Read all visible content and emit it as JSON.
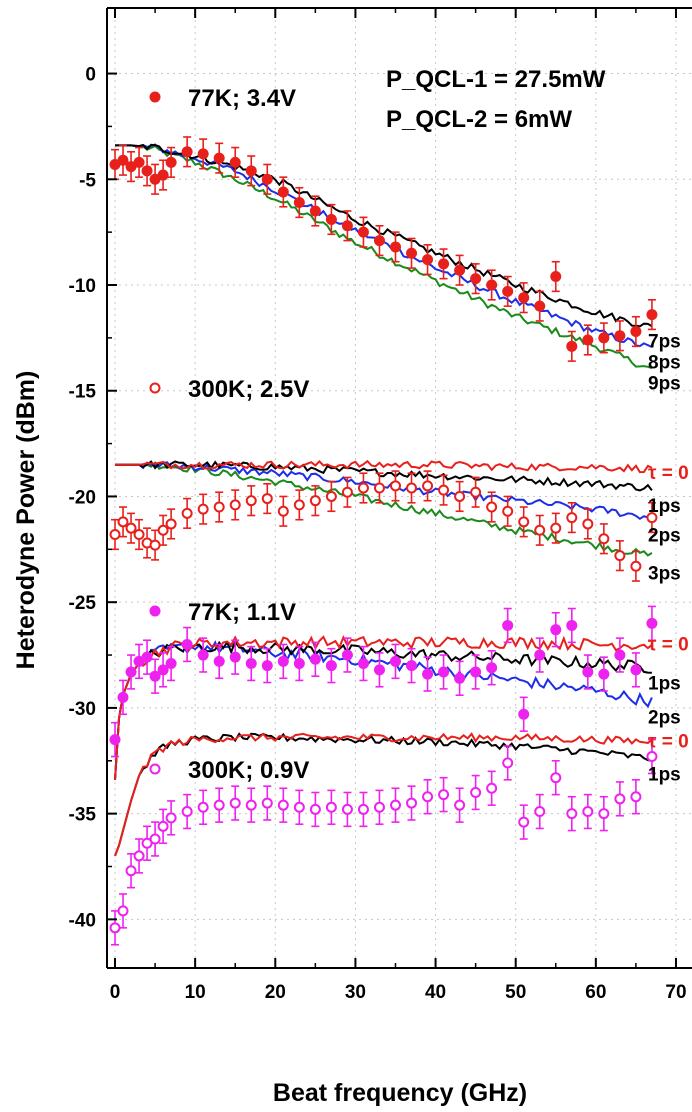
{
  "chart_data": {
    "type": "line",
    "xlabel": "Beat frequency  (GHz)",
    "ylabel": "Heterodyne Power  (dBm)",
    "xlim": [
      -1,
      72
    ],
    "ylim": [
      -42.3,
      3.1
    ],
    "xticks": [
      0,
      10,
      20,
      30,
      40,
      50,
      60,
      70
    ],
    "xtick_labels": [
      "0",
      "10",
      "20",
      "30",
      "40",
      "50",
      "60",
      "70"
    ],
    "yticks": [
      0,
      -5,
      -10,
      -15,
      -20,
      -25,
      -30,
      -35,
      -40
    ],
    "ytick_labels": [
      "0",
      "-5",
      "-10",
      "-15",
      "-20",
      "-25",
      "-30",
      "-35",
      "-40"
    ],
    "grid": true,
    "annotations": [
      "P_QCL-1 = 27.5mW",
      "P_QCL-2 = 6mW"
    ],
    "colors": {
      "red": "#e8201c",
      "magenta": "#ee22ee",
      "black": "#000000",
      "blue": "#1c2ee8",
      "green": "#1a8a1a"
    },
    "measured": [
      {
        "name": "77K; 3.4V",
        "color": "#e8201c",
        "marker": "filled",
        "x": [
          0,
          1,
          2,
          3,
          4,
          5,
          6,
          7,
          9,
          11,
          13,
          15,
          17,
          19,
          21,
          23,
          25,
          27,
          29,
          31,
          33,
          35,
          37,
          39,
          41,
          43,
          45,
          47,
          49,
          51,
          53,
          55,
          57,
          59,
          61,
          63,
          65,
          67
        ],
        "y": [
          -4.3,
          -4.1,
          -4.4,
          -4.2,
          -4.6,
          -5.0,
          -4.8,
          -4.2,
          -3.7,
          -3.8,
          -4.0,
          -4.2,
          -4.6,
          -5.0,
          -5.6,
          -6.1,
          -6.5,
          -6.9,
          -7.2,
          -7.5,
          -7.9,
          -8.2,
          -8.5,
          -8.8,
          -9.0,
          -9.3,
          -9.7,
          -10.0,
          -10.3,
          -10.6,
          -11.0,
          -9.6,
          -12.9,
          -12.6,
          -12.5,
          -12.4,
          -12.2,
          -11.4
        ],
        "err": 0.7
      },
      {
        "name": "300K; 2.5V",
        "color": "#e8201c",
        "marker": "open",
        "x": [
          0,
          1,
          2,
          3,
          4,
          5,
          6,
          7,
          9,
          11,
          13,
          15,
          17,
          19,
          21,
          23,
          25,
          27,
          29,
          31,
          33,
          35,
          37,
          39,
          41,
          43,
          45,
          47,
          49,
          51,
          53,
          55,
          57,
          59,
          61,
          63,
          65,
          67
        ],
        "y": [
          -21.8,
          -21.2,
          -21.5,
          -21.8,
          -22.2,
          -22.3,
          -21.6,
          -21.3,
          -20.8,
          -20.6,
          -20.5,
          -20.4,
          -20.2,
          -20.1,
          -20.7,
          -20.4,
          -20.2,
          -20.0,
          -19.8,
          -19.6,
          -19.6,
          -19.5,
          -19.6,
          -19.5,
          -19.7,
          -20.0,
          -19.8,
          -20.5,
          -20.7,
          -21.2,
          -21.6,
          -21.5,
          -21.0,
          -21.3,
          -22.0,
          -22.8,
          -23.3,
          -21.0
        ],
        "err": 0.7
      },
      {
        "name": "77K; 1.1V",
        "color": "#ee22ee",
        "marker": "filled",
        "x": [
          0,
          1,
          2,
          3,
          4,
          5,
          6,
          7,
          9,
          11,
          13,
          15,
          17,
          19,
          21,
          23,
          25,
          27,
          29,
          31,
          33,
          35,
          37,
          39,
          41,
          43,
          45,
          47,
          49,
          51,
          53,
          55,
          57,
          59,
          61,
          63,
          65,
          67
        ],
        "y": [
          -31.5,
          -29.5,
          -28.3,
          -27.8,
          -27.6,
          -28.5,
          -28.2,
          -27.9,
          -27.0,
          -27.5,
          -27.8,
          -27.6,
          -27.9,
          -28.0,
          -27.8,
          -27.9,
          -27.7,
          -28.0,
          -27.5,
          -27.9,
          -28.2,
          -27.8,
          -28.0,
          -28.4,
          -28.3,
          -28.6,
          -28.3,
          -28.1,
          -26.1,
          -30.3,
          -27.5,
          -26.3,
          -26.1,
          -28.3,
          -28.4,
          -27.5,
          -28.2,
          -26.0
        ],
        "err": 0.8
      },
      {
        "name": "300K; 0.9V",
        "color": "#ee22ee",
        "marker": "open",
        "x": [
          0,
          1,
          2,
          3,
          4,
          5,
          6,
          7,
          9,
          11,
          13,
          15,
          17,
          19,
          21,
          23,
          25,
          27,
          29,
          31,
          33,
          35,
          37,
          39,
          41,
          43,
          45,
          47,
          49,
          51,
          53,
          55,
          57,
          59,
          61,
          63,
          65,
          67
        ],
        "y": [
          -40.4,
          -39.6,
          -37.7,
          -37.0,
          -36.4,
          -36.2,
          -35.6,
          -35.2,
          -34.9,
          -34.7,
          -34.6,
          -34.5,
          -34.6,
          -34.5,
          -34.6,
          -34.7,
          -34.8,
          -34.7,
          -34.8,
          -34.8,
          -34.7,
          -34.6,
          -34.5,
          -34.2,
          -34.1,
          -34.6,
          -34.0,
          -33.8,
          -32.6,
          -35.4,
          -34.9,
          -33.3,
          -35.0,
          -34.9,
          -35.0,
          -34.3,
          -34.2,
          -32.3
        ],
        "err": 0.8
      }
    ],
    "model": [
      {
        "group": 1,
        "tau": "7ps",
        "color": "#000000",
        "x": [
          0,
          2,
          5,
          10,
          15,
          20,
          30,
          40,
          50,
          60,
          67
        ],
        "y": [
          -3.4,
          -3.4,
          -3.5,
          -3.9,
          -4.4,
          -5.0,
          -6.9,
          -8.5,
          -10.0,
          -11.3,
          -12.0
        ]
      },
      {
        "group": 1,
        "tau": "8ps",
        "color": "#1c2ee8",
        "x": [
          0,
          2,
          5,
          10,
          15,
          20,
          30,
          40,
          50,
          60,
          67
        ],
        "y": [
          -3.4,
          -3.4,
          -3.5,
          -4.0,
          -4.6,
          -5.5,
          -7.4,
          -9.2,
          -10.8,
          -12.2,
          -13.0
        ]
      },
      {
        "group": 1,
        "tau": "9ps",
        "color": "#1a8a1a",
        "x": [
          0,
          2,
          5,
          10,
          15,
          20,
          30,
          40,
          50,
          60,
          67
        ],
        "y": [
          -3.4,
          -3.4,
          -3.6,
          -4.2,
          -5.0,
          -5.9,
          -8.0,
          -9.8,
          -11.5,
          -12.9,
          -14.0
        ]
      },
      {
        "group": 2,
        "tau": "τ = 0",
        "color": "#e8201c",
        "x": [
          0,
          5,
          10,
          20,
          30,
          40,
          50,
          60,
          67
        ],
        "y": [
          -18.5,
          -18.5,
          -18.5,
          -18.5,
          -18.5,
          -18.5,
          -18.6,
          -18.6,
          -18.7
        ]
      },
      {
        "group": 2,
        "tau": "1ps",
        "color": "#000000",
        "x": [
          0,
          5,
          10,
          20,
          30,
          40,
          50,
          60,
          67
        ],
        "y": [
          -18.5,
          -18.5,
          -18.5,
          -18.6,
          -18.8,
          -19.0,
          -19.2,
          -19.4,
          -19.6
        ]
      },
      {
        "group": 2,
        "tau": "2ps",
        "color": "#1c2ee8",
        "x": [
          0,
          5,
          10,
          20,
          30,
          40,
          50,
          60,
          67
        ],
        "y": [
          -18.5,
          -18.5,
          -18.6,
          -18.9,
          -19.3,
          -19.8,
          -20.2,
          -20.6,
          -21.0
        ]
      },
      {
        "group": 2,
        "tau": "3ps",
        "color": "#1a8a1a",
        "x": [
          0,
          5,
          10,
          20,
          30,
          40,
          50,
          60,
          67
        ],
        "y": [
          -18.5,
          -18.5,
          -18.7,
          -19.3,
          -20.0,
          -20.8,
          -21.6,
          -22.3,
          -22.8
        ]
      },
      {
        "group": 3,
        "tau": "τ = 0",
        "color": "#e8201c",
        "x": [
          0,
          0.5,
          1,
          2,
          3,
          5,
          7,
          10,
          15,
          20,
          30,
          40,
          50,
          60,
          67
        ],
        "y": [
          -33.4,
          -30.5,
          -29.4,
          -28.4,
          -27.9,
          -27.4,
          -27.1,
          -27.0,
          -26.9,
          -26.9,
          -26.9,
          -26.9,
          -26.9,
          -27.0,
          -27.0
        ]
      },
      {
        "group": 3,
        "tau": "1ps",
        "color": "#000000",
        "x": [
          0,
          0.5,
          1,
          2,
          3,
          5,
          7,
          10,
          15,
          20,
          30,
          40,
          50,
          60,
          67
        ],
        "y": [
          -33.4,
          -30.5,
          -29.4,
          -28.4,
          -27.9,
          -27.4,
          -27.2,
          -27.1,
          -27.1,
          -27.2,
          -27.3,
          -27.5,
          -27.7,
          -27.9,
          -28.1
        ]
      },
      {
        "group": 3,
        "tau": "2ps",
        "color": "#1c2ee8",
        "x": [
          0,
          0.5,
          1,
          2,
          3,
          5,
          7,
          10,
          15,
          20,
          30,
          40,
          50,
          60,
          67
        ],
        "y": [
          -33.4,
          -30.5,
          -29.4,
          -28.4,
          -27.9,
          -27.4,
          -27.2,
          -27.1,
          -27.2,
          -27.4,
          -27.7,
          -28.2,
          -28.7,
          -29.2,
          -29.7
        ]
      },
      {
        "group": 4,
        "tau": "τ = 0",
        "color": "#e8201c",
        "x": [
          0,
          0.5,
          1,
          2,
          3,
          5,
          7,
          10,
          15,
          20,
          30,
          40,
          50,
          60,
          67
        ],
        "y": [
          -37.0,
          -36.5,
          -35.8,
          -34.4,
          -33.2,
          -32.1,
          -31.7,
          -31.5,
          -31.4,
          -31.4,
          -31.4,
          -31.4,
          -31.4,
          -31.5,
          -31.6
        ]
      },
      {
        "group": 4,
        "tau": "1ps",
        "color": "#000000",
        "x": [
          0,
          0.5,
          1,
          2,
          3,
          5,
          7,
          10,
          15,
          20,
          30,
          40,
          50,
          60,
          67
        ],
        "y": [
          -37.0,
          -36.5,
          -35.8,
          -34.4,
          -33.2,
          -32.1,
          -31.7,
          -31.5,
          -31.4,
          -31.4,
          -31.5,
          -31.6,
          -31.8,
          -32.1,
          -32.4
        ]
      }
    ]
  }
}
